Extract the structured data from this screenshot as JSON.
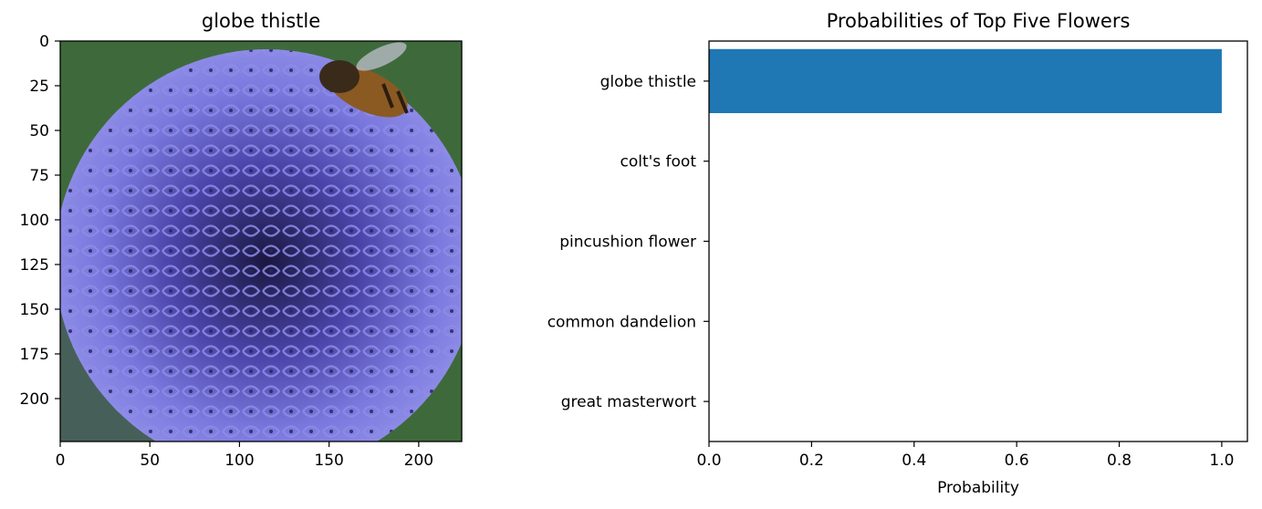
{
  "chart_data": [
    {
      "type": "image",
      "title": "globe thistle",
      "image_subject": "blue globe thistle flower head with a bee on top, green background",
      "xlim": [
        0,
        224
      ],
      "ylim": [
        224,
        0
      ],
      "x_ticks": [
        0,
        50,
        100,
        150,
        200
      ],
      "y_ticks": [
        0,
        25,
        50,
        75,
        100,
        125,
        150,
        175,
        200
      ],
      "colors": {
        "flower": "#6a6ad0",
        "background": "#3f6b3c"
      }
    },
    {
      "type": "bar",
      "orientation": "horizontal",
      "title": "Probabilities of Top Five Flowers",
      "xlabel": "Probability",
      "ylabel": "",
      "categories": [
        "globe thistle",
        "colt's foot",
        "pincushion flower",
        "common dandelion",
        "great masterwort"
      ],
      "values": [
        1.0,
        0.0,
        0.0,
        0.0,
        0.0
      ],
      "xlim": [
        0.0,
        1.05
      ],
      "x_ticks": [
        0.0,
        0.2,
        0.4,
        0.6,
        0.8,
        1.0
      ],
      "bar_color": "#1f77b4",
      "grid": false
    }
  ]
}
